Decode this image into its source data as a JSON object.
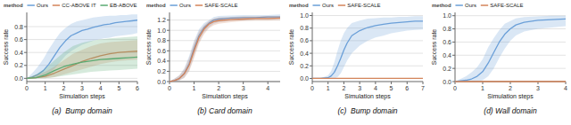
{
  "chart_data": [
    {
      "type": "line",
      "title": "(a)  Bump domain",
      "xlabel": "Simulation steps",
      "ylabel": "Success rate",
      "xlim": [
        0,
        6
      ],
      "ylim": [
        -0.05,
        1.02
      ],
      "xticks": [
        0,
        1,
        2,
        3,
        4,
        5,
        6
      ],
      "yticks": [
        {
          "value": 0,
          "label": "0.0"
        },
        0.2,
        0.4,
        0.6,
        0.8
      ],
      "grid": true,
      "legend": "top",
      "legend_title": "method",
      "series": [
        {
          "name": "Ours",
          "color": "#6a9fd8",
          "x": [
            0.0,
            0.3,
            0.6,
            0.9,
            1.2,
            1.5,
            1.8,
            2.1,
            2.4,
            2.7,
            3.0,
            3.3,
            3.6,
            3.9,
            4.2,
            4.5,
            4.8,
            5.1,
            5.4,
            5.7,
            6.0
          ],
          "values": [
            0.0,
            0.02,
            0.06,
            0.12,
            0.22,
            0.35,
            0.48,
            0.58,
            0.66,
            0.7,
            0.74,
            0.76,
            0.79,
            0.81,
            0.83,
            0.84,
            0.86,
            0.87,
            0.88,
            0.89,
            0.9
          ],
          "lower": [
            0.0,
            0.0,
            0.0,
            0.02,
            0.08,
            0.15,
            0.25,
            0.35,
            0.42,
            0.47,
            0.52,
            0.55,
            0.58,
            0.6,
            0.62,
            0.63,
            0.65,
            0.66,
            0.67,
            0.68,
            0.7
          ],
          "upper": [
            0.0,
            0.08,
            0.18,
            0.3,
            0.45,
            0.58,
            0.7,
            0.78,
            0.84,
            0.88,
            0.9,
            0.92,
            0.94,
            0.95,
            0.96,
            0.97,
            0.97,
            0.98,
            0.98,
            0.99,
            0.99
          ]
        },
        {
          "name": "CC-ABOVE IT",
          "color": "#d4845a",
          "x": [
            0.0,
            0.5,
            1.0,
            1.5,
            2.0,
            2.5,
            3.0,
            3.5,
            4.0,
            4.5,
            5.0,
            5.5,
            6.0
          ],
          "values": [
            0.0,
            0.01,
            0.03,
            0.08,
            0.14,
            0.2,
            0.26,
            0.31,
            0.35,
            0.38,
            0.4,
            0.41,
            0.42
          ],
          "lower": [
            0.0,
            0.0,
            0.0,
            0.02,
            0.06,
            0.1,
            0.14,
            0.18,
            0.22,
            0.25,
            0.27,
            0.28,
            0.29
          ],
          "upper": [
            0.0,
            0.05,
            0.1,
            0.18,
            0.28,
            0.38,
            0.44,
            0.5,
            0.54,
            0.56,
            0.57,
            0.58,
            0.59
          ]
        },
        {
          "name": "EB-ABOVE",
          "color": "#5aaa72",
          "x": [
            0.0,
            0.5,
            1.0,
            1.5,
            2.0,
            2.5,
            3.0,
            3.5,
            4.0,
            4.5,
            5.0,
            5.5,
            6.0
          ],
          "values": [
            0.0,
            0.01,
            0.05,
            0.12,
            0.18,
            0.22,
            0.25,
            0.27,
            0.29,
            0.3,
            0.31,
            0.32,
            0.33
          ],
          "lower": [
            0.0,
            0.0,
            0.0,
            0.02,
            0.04,
            0.06,
            0.08,
            0.1,
            0.11,
            0.12,
            0.13,
            0.14,
            0.15
          ],
          "upper": [
            0.0,
            0.06,
            0.15,
            0.28,
            0.4,
            0.5,
            0.55,
            0.58,
            0.6,
            0.62,
            0.63,
            0.64,
            0.65
          ]
        }
      ]
    },
    {
      "type": "line",
      "title": "(b) Card domain",
      "xlabel": "Simulation steps",
      "ylabel": "Success rate",
      "xlim": [
        0,
        4.5
      ],
      "ylim": [
        0.0,
        1.35
      ],
      "xticks": [
        0,
        1,
        2,
        3,
        4
      ],
      "yticks": [
        {
          "value": 0,
          "label": "0.0"
        },
        0.2,
        0.4,
        0.6,
        0.8,
        {
          "value": 1,
          "label": "1.0"
        },
        1.2
      ],
      "grid": true,
      "legend": "top",
      "legend_title": "method",
      "series": [
        {
          "name": "Ours",
          "color": "#6a9fd8",
          "x": [
            0.0,
            0.2,
            0.4,
            0.6,
            0.8,
            1.0,
            1.2,
            1.4,
            1.6,
            1.8,
            2.0,
            2.5,
            3.0,
            3.5,
            4.0,
            4.5
          ],
          "values": [
            0.0,
            0.02,
            0.06,
            0.16,
            0.35,
            0.65,
            0.9,
            1.05,
            1.14,
            1.2,
            1.22,
            1.24,
            1.25,
            1.25,
            1.26,
            1.26
          ],
          "lower": [
            0.0,
            0.0,
            0.02,
            0.08,
            0.22,
            0.5,
            0.78,
            0.96,
            1.06,
            1.13,
            1.16,
            1.19,
            1.2,
            1.21,
            1.21,
            1.22
          ],
          "upper": [
            0.0,
            0.06,
            0.12,
            0.26,
            0.5,
            0.8,
            1.02,
            1.14,
            1.2,
            1.26,
            1.28,
            1.29,
            1.3,
            1.3,
            1.3,
            1.31
          ]
        },
        {
          "name": "SAFE-SCALE",
          "color": "#d4845a",
          "x": [
            0.0,
            0.2,
            0.4,
            0.6,
            0.8,
            1.0,
            1.2,
            1.4,
            1.6,
            1.8,
            2.0,
            2.5,
            3.0,
            3.5,
            4.0,
            4.5
          ],
          "values": [
            0.0,
            0.02,
            0.06,
            0.15,
            0.32,
            0.6,
            0.86,
            1.02,
            1.12,
            1.17,
            1.19,
            1.21,
            1.22,
            1.23,
            1.23,
            1.24
          ],
          "lower": [
            0.0,
            0.0,
            0.02,
            0.07,
            0.2,
            0.46,
            0.74,
            0.92,
            1.04,
            1.1,
            1.13,
            1.16,
            1.18,
            1.19,
            1.19,
            1.2
          ],
          "upper": [
            0.0,
            0.05,
            0.12,
            0.24,
            0.46,
            0.76,
            0.98,
            1.1,
            1.18,
            1.23,
            1.25,
            1.26,
            1.27,
            1.27,
            1.28,
            1.28
          ]
        }
      ]
    },
    {
      "type": "line",
      "title": "(c)  Bump domain",
      "xlabel": "Simulation steps",
      "ylabel": "Success rate",
      "xlim": [
        0,
        7
      ],
      "ylim": [
        -0.05,
        1.05
      ],
      "xticks": [
        0,
        1,
        2,
        3,
        4,
        5,
        6,
        7
      ],
      "yticks": [
        {
          "value": 0,
          "label": "0.0"
        },
        0.2,
        0.4,
        0.6,
        0.8,
        {
          "value": 1,
          "label": "1.0"
        }
      ],
      "grid": true,
      "legend": "top",
      "legend_title": "method",
      "series": [
        {
          "name": "Ours",
          "color": "#6a9fd8",
          "x": [
            0.0,
            0.5,
            1.0,
            1.2,
            1.4,
            1.6,
            1.8,
            2.0,
            2.2,
            2.5,
            3.0,
            3.5,
            4.0,
            4.5,
            5.0,
            5.5,
            6.0,
            6.5,
            7.0
          ],
          "values": [
            0.0,
            0.0,
            0.01,
            0.04,
            0.1,
            0.2,
            0.32,
            0.45,
            0.56,
            0.68,
            0.76,
            0.81,
            0.84,
            0.86,
            0.88,
            0.89,
            0.9,
            0.91,
            0.91
          ],
          "lower": [
            0.0,
            0.0,
            0.0,
            0.0,
            0.0,
            0.02,
            0.08,
            0.18,
            0.28,
            0.4,
            0.52,
            0.6,
            0.65,
            0.68,
            0.72,
            0.74,
            0.76,
            0.77,
            0.78
          ],
          "upper": [
            0.0,
            0.0,
            0.05,
            0.12,
            0.26,
            0.44,
            0.6,
            0.72,
            0.8,
            0.88,
            0.92,
            0.95,
            0.96,
            0.97,
            0.97,
            0.98,
            0.98,
            0.99,
            0.99
          ]
        },
        {
          "name": "SAFE-SCALE",
          "color": "#d4845a",
          "x": [
            0.0,
            7.0
          ],
          "values": [
            0.0,
            0.0
          ],
          "lower": [
            0.0,
            0.0
          ],
          "upper": [
            0.0,
            0.0
          ]
        }
      ]
    },
    {
      "type": "line",
      "title": "(d) Wall domain",
      "xlabel": "Simulation steps",
      "ylabel": "Success rate",
      "xlim": [
        0,
        4
      ],
      "ylim": [
        0.0,
        1.05
      ],
      "xticks": [
        0,
        1,
        2,
        3,
        4
      ],
      "yticks": [
        {
          "value": 0,
          "label": "0.0"
        },
        0.2,
        0.4,
        0.6,
        0.8,
        {
          "value": 1,
          "label": "1.0"
        }
      ],
      "grid": true,
      "legend": "top",
      "legend_title": "method",
      "series": [
        {
          "name": "Ours",
          "color": "#6a9fd8",
          "x": [
            0.0,
            0.2,
            0.4,
            0.6,
            0.8,
            1.0,
            1.2,
            1.4,
            1.6,
            1.8,
            2.0,
            2.2,
            2.5,
            3.0,
            3.5,
            4.0
          ],
          "values": [
            0.0,
            0.01,
            0.02,
            0.04,
            0.08,
            0.15,
            0.28,
            0.44,
            0.6,
            0.72,
            0.8,
            0.86,
            0.9,
            0.93,
            0.94,
            0.95
          ],
          "lower": [
            0.0,
            0.0,
            0.0,
            0.0,
            0.0,
            0.02,
            0.08,
            0.2,
            0.36,
            0.5,
            0.62,
            0.7,
            0.76,
            0.8,
            0.82,
            0.84
          ],
          "upper": [
            0.0,
            0.04,
            0.08,
            0.14,
            0.22,
            0.34,
            0.52,
            0.66,
            0.78,
            0.88,
            0.92,
            0.96,
            0.98,
            0.99,
            1.0,
            1.0
          ]
        },
        {
          "name": "SAFE-SCALE",
          "color": "#d4845a",
          "x": [
            0.0,
            4.0
          ],
          "values": [
            0.0,
            0.0
          ],
          "lower": [
            0.0,
            0.0
          ],
          "upper": [
            0.0,
            0.0
          ]
        }
      ]
    }
  ]
}
